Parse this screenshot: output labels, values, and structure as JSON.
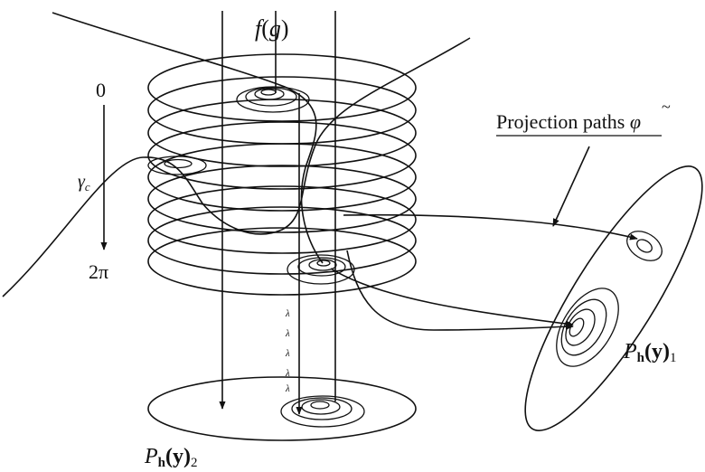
{
  "labels": {
    "function_label": "f(g)",
    "function_f": "f",
    "function_arg": "g",
    "angle_start": "0",
    "angle_end": "2π",
    "gamma_symbol": "γ",
    "gamma_sub": "c",
    "projection_text": "Projection paths ",
    "projection_symbol": "φ",
    "projection_tilde": "~",
    "p1_main": "P",
    "p1_bold_sub": "h",
    "p1_arg": "(y)",
    "p1_index": "1",
    "p2_main": "P",
    "p2_bold_sub": "h",
    "p2_arg": "(y)",
    "p2_index": "2",
    "lambda_symbol": "λ"
  },
  "colors": {
    "stroke": "#111111",
    "background": "#ffffff"
  }
}
